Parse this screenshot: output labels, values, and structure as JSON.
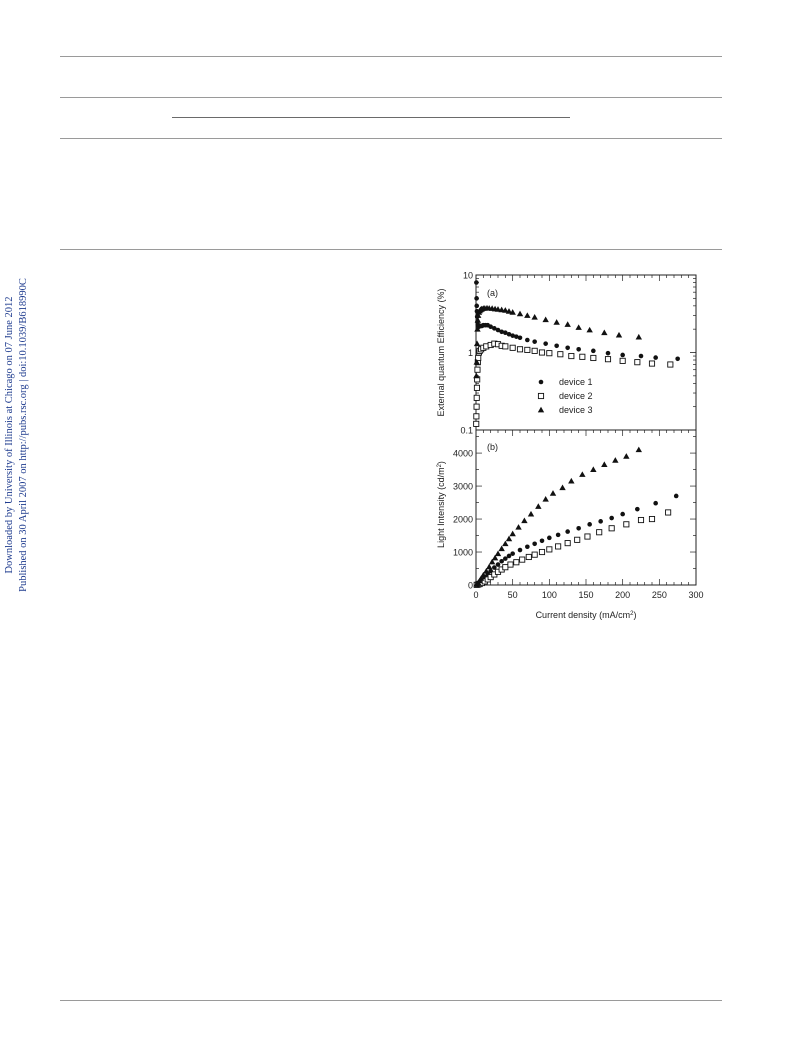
{
  "side_note": {
    "line1": "Downloaded by University of Illinois at Chicago on 07 June 2012",
    "line2": "Published on 30 April 2007 on http://pubs.rsc.org | doi:10.1039/B618990C"
  },
  "chart_data": [
    {
      "panel": "(a)",
      "type": "scatter",
      "xlabel": "",
      "ylabel": "External quantum Efficiency (%)",
      "yscale": "log",
      "xlim": [
        0,
        300
      ],
      "ylim": [
        0.1,
        10
      ],
      "yticks": [
        "0.1",
        "1",
        "10"
      ],
      "legend_position": "bottom-center",
      "series": [
        {
          "name": "device 1",
          "marker": "filled-circle",
          "x": [
            0.5,
            0.8,
            1.0,
            1.3,
            1.6,
            2.0,
            2.5,
            3.0,
            4.0,
            5.0,
            6.5,
            8.0,
            10,
            13,
            16,
            20,
            25,
            30,
            35,
            40,
            45,
            50,
            55,
            60,
            70,
            80,
            95,
            110,
            125,
            140,
            160,
            180,
            200,
            225,
            245,
            275
          ],
          "y": [
            8.0,
            5.0,
            4.0,
            3.4,
            2.9,
            2.5,
            2.3,
            2.2,
            2.15,
            2.2,
            2.2,
            2.2,
            2.25,
            2.25,
            2.25,
            2.15,
            2.05,
            1.95,
            1.85,
            1.8,
            1.72,
            1.65,
            1.6,
            1.55,
            1.45,
            1.38,
            1.3,
            1.22,
            1.15,
            1.1,
            1.05,
            0.98,
            0.93,
            0.9,
            0.86,
            0.83
          ]
        },
        {
          "name": "device 2",
          "marker": "open-square",
          "x": [
            0.3,
            0.5,
            0.8,
            1.0,
            1.3,
            1.6,
            2.0,
            2.5,
            3.0,
            4.0,
            5.0,
            7,
            10,
            14,
            20,
            25,
            30,
            35,
            40,
            50,
            60,
            70,
            80,
            90,
            100,
            115,
            130,
            145,
            160,
            180,
            200,
            220,
            240,
            265
          ],
          "y": [
            0.12,
            0.15,
            0.2,
            0.26,
            0.35,
            0.45,
            0.6,
            0.75,
            0.85,
            1.0,
            1.05,
            1.1,
            1.15,
            1.2,
            1.25,
            1.3,
            1.28,
            1.22,
            1.2,
            1.15,
            1.1,
            1.08,
            1.05,
            1.0,
            0.98,
            0.95,
            0.9,
            0.88,
            0.85,
            0.82,
            0.78,
            0.75,
            0.72,
            0.7
          ]
        },
        {
          "name": "device 3",
          "marker": "filled-triangle",
          "x": [
            0.5,
            1.0,
            1.5,
            2.0,
            2.5,
            3.0,
            4.0,
            5.0,
            6.0,
            7,
            8,
            10,
            12,
            15,
            18,
            22,
            26,
            30,
            35,
            40,
            45,
            50,
            60,
            70,
            80,
            95,
            110,
            125,
            140,
            155,
            175,
            195,
            222
          ],
          "y": [
            0.5,
            0.75,
            1.3,
            2.0,
            2.6,
            3.0,
            3.3,
            3.45,
            3.55,
            3.6,
            3.65,
            3.7,
            3.72,
            3.75,
            3.72,
            3.7,
            3.65,
            3.6,
            3.55,
            3.5,
            3.4,
            3.3,
            3.15,
            3.0,
            2.85,
            2.65,
            2.45,
            2.3,
            2.1,
            1.95,
            1.8,
            1.68,
            1.58
          ]
        }
      ]
    },
    {
      "panel": "(b)",
      "type": "scatter",
      "xlabel": "Current density (mA/cm",
      "xlabel_sup": "2",
      "xlabel_close": ")",
      "ylabel": "Light Intensity (cd/m",
      "ylabel_sup": "2",
      "ylabel_close": ")",
      "xlim": [
        0,
        300
      ],
      "ylim": [
        0,
        4700
      ],
      "xticks": [
        "0",
        "50",
        "100",
        "150",
        "200",
        "250",
        "300"
      ],
      "yticks": [
        "0",
        "1000",
        "2000",
        "3000",
        "4000"
      ],
      "series": [
        {
          "name": "device 1",
          "marker": "filled-circle",
          "x": [
            1,
            3,
            5,
            8,
            12,
            16,
            20,
            25,
            30,
            35,
            40,
            45,
            50,
            60,
            70,
            80,
            90,
            100,
            112,
            125,
            140,
            155,
            170,
            185,
            200,
            220,
            245,
            273
          ],
          "y": [
            10,
            40,
            80,
            140,
            240,
            330,
            420,
            530,
            620,
            720,
            800,
            880,
            950,
            1060,
            1160,
            1250,
            1340,
            1430,
            1520,
            1620,
            1720,
            1840,
            1930,
            2030,
            2150,
            2300,
            2480,
            2700
          ]
        },
        {
          "name": "device 2",
          "marker": "open-square",
          "x": [
            1,
            3,
            5,
            8,
            12,
            16,
            20,
            25,
            30,
            35,
            40,
            47,
            55,
            63,
            72,
            80,
            90,
            100,
            112,
            125,
            138,
            152,
            168,
            185,
            205,
            225,
            240,
            262
          ],
          "y": [
            5,
            15,
            30,
            60,
            110,
            170,
            240,
            320,
            400,
            470,
            540,
            620,
            690,
            770,
            850,
            920,
            1000,
            1080,
            1170,
            1270,
            1370,
            1470,
            1600,
            1720,
            1840,
            1970,
            2000,
            2200
          ]
        },
        {
          "name": "device 3",
          "marker": "filled-triangle",
          "x": [
            1,
            3,
            5,
            7,
            10,
            14,
            18,
            22,
            26,
            30,
            35,
            40,
            45,
            50,
            58,
            66,
            75,
            85,
            95,
            105,
            118,
            130,
            145,
            160,
            175,
            190,
            205,
            222
          ],
          "y": [
            20,
            70,
            130,
            200,
            300,
            420,
            550,
            700,
            820,
            950,
            1100,
            1250,
            1400,
            1550,
            1750,
            1950,
            2150,
            2380,
            2600,
            2780,
            2950,
            3150,
            3350,
            3500,
            3650,
            3780,
            3900,
            4100
          ]
        }
      ]
    }
  ]
}
